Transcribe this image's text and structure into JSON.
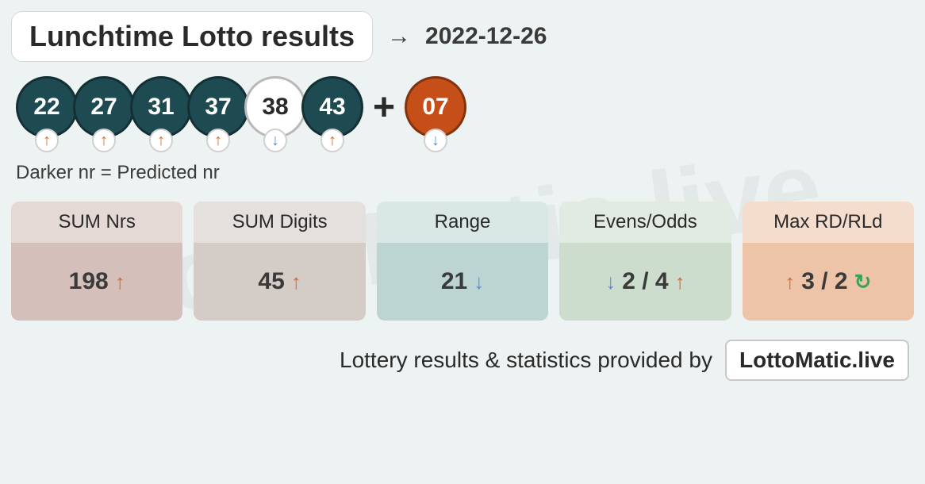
{
  "watermark": "LottoMatic.live",
  "header": {
    "title": "Lunchtime Lotto results",
    "arrow_glyph": "→",
    "date": "2022-12-26"
  },
  "balls": {
    "main": [
      {
        "value": "22",
        "style": "dark",
        "trend": "up"
      },
      {
        "value": "27",
        "style": "dark",
        "trend": "up"
      },
      {
        "value": "31",
        "style": "dark",
        "trend": "up"
      },
      {
        "value": "37",
        "style": "dark",
        "trend": "up"
      },
      {
        "value": "38",
        "style": "light",
        "trend": "down"
      },
      {
        "value": "43",
        "style": "dark",
        "trend": "up"
      }
    ],
    "plus_glyph": "+",
    "bonus": {
      "value": "07",
      "style": "bonus",
      "trend": "down"
    },
    "colors": {
      "dark_bg": "#1e4b52",
      "dark_fg": "#ffffff",
      "light_bg": "#ffffff",
      "light_fg": "#2a2a2a",
      "bonus_bg": "#c64f19",
      "bonus_fg": "#ffffff",
      "trend_up": "#d56a2f",
      "trend_down": "#5a8fd6"
    }
  },
  "legend": "Darker nr = Predicted nr",
  "stats": [
    {
      "label": "SUM Nrs",
      "head_bg": "#e5d9d6",
      "body_bg": "#d5bfbb",
      "parts": [
        {
          "text": "198"
        },
        {
          "icon": "up"
        }
      ]
    },
    {
      "label": "SUM Digits",
      "head_bg": "#e4e0dd",
      "body_bg": "#d4ccc6",
      "parts": [
        {
          "text": "45"
        },
        {
          "icon": "up"
        }
      ]
    },
    {
      "label": "Range",
      "head_bg": "#d9e7e5",
      "body_bg": "#bcd5d2",
      "parts": [
        {
          "text": "21"
        },
        {
          "icon": "down"
        }
      ]
    },
    {
      "label": "Evens/Odds",
      "head_bg": "#e2ebe2",
      "body_bg": "#ccdccd",
      "parts": [
        {
          "icon": "down"
        },
        {
          "text": "2 / 4"
        },
        {
          "icon": "up"
        }
      ]
    },
    {
      "label": "Max RD/RLd",
      "head_bg": "#f5ddcd",
      "body_bg": "#eec4a9",
      "parts": [
        {
          "icon": "up"
        },
        {
          "text": "3 / 2"
        },
        {
          "icon": "refresh"
        }
      ]
    }
  ],
  "footer": {
    "text": "Lottery results & statistics provided by",
    "brand": "LottoMatic.live"
  },
  "glyphs": {
    "up": "↑",
    "down": "↓",
    "refresh": "↻"
  }
}
